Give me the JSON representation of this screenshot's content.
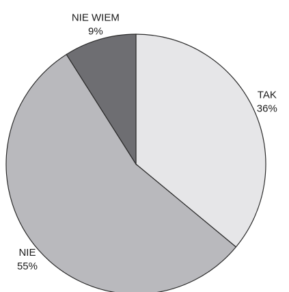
{
  "chart_data": {
    "type": "pie",
    "categories": [
      "TAK",
      "NIE",
      "NIE WIEM"
    ],
    "values": [
      36,
      55,
      9
    ],
    "value_labels": [
      "36%",
      "55%",
      "9%"
    ],
    "colors": [
      "#e6e6e8",
      "#b9b9bd",
      "#6e6e72"
    ]
  }
}
